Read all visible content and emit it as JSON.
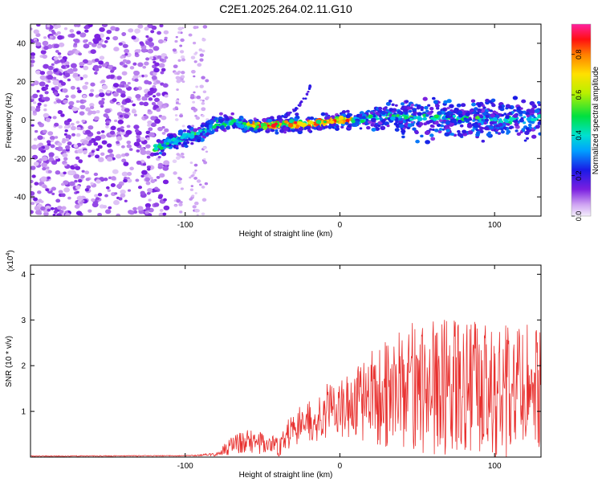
{
  "figure_title": "C2E1.2025.264.02.11.G10",
  "chart_data": [
    {
      "type": "heatmap",
      "xlabel": "Height of straight line (km)",
      "ylabel": "Frequency (Hz)",
      "xlim": [
        -200,
        130
      ],
      "ylim": [
        -50,
        50
      ],
      "xticks": [
        -100,
        0,
        100
      ],
      "xtick_labels": [
        "-100",
        "0",
        "100"
      ],
      "yticks": [
        -40,
        -20,
        0,
        20,
        40
      ],
      "ytick_labels": [
        "-40",
        "-20",
        "0",
        "20",
        "40"
      ],
      "colorbar": {
        "label": "Normalized spectral amplitude",
        "range": [
          0,
          0.95
        ],
        "ticks": [
          0.0,
          0.2,
          0.4,
          0.6,
          0.8
        ],
        "tick_labels": [
          "0.0",
          "0.2",
          "0.4",
          "0.6",
          "0.8"
        ]
      },
      "ridge": {
        "x": [
          -118,
          -110,
          -100,
          -90,
          -80,
          -70,
          -60,
          -50,
          -40,
          -30,
          -20,
          -10,
          0,
          10,
          20,
          30,
          40,
          50,
          60,
          70,
          80,
          90,
          100,
          110,
          120,
          130
        ],
        "freq": [
          -14,
          -12,
          -9,
          -6,
          -2,
          -1,
          -3,
          -3,
          -2,
          -2,
          -2,
          -1,
          0,
          0,
          1,
          2,
          2,
          1,
          1,
          2,
          1,
          0,
          0,
          0,
          0,
          1
        ]
      },
      "branch": {
        "x": [
          -35,
          -28,
          -22,
          -18
        ],
        "freq": [
          2,
          6,
          12,
          20
        ]
      }
    },
    {
      "type": "line",
      "xlabel": "Height of straight line (km)",
      "ylabel": "SNR (10 * v/v)",
      "scale_label": "(x10",
      "scale_exp": "4",
      "xlim": [
        -200,
        130
      ],
      "ylim": [
        0,
        4.2
      ],
      "xticks": [
        -100,
        0,
        100
      ],
      "xtick_labels": [
        "-100",
        "0",
        "100"
      ],
      "yticks": [
        1,
        2,
        3,
        4
      ],
      "ytick_labels": [
        "1",
        "2",
        "3",
        "4"
      ],
      "color": "#e8302e",
      "envelope": {
        "x": [
          -200,
          -100,
          -90,
          -80,
          -70,
          -60,
          -50,
          -40,
          -30,
          -20,
          -10,
          0,
          10,
          20,
          30,
          40,
          50,
          60,
          80,
          100,
          120,
          130
        ],
        "mean": [
          0.02,
          0.03,
          0.04,
          0.06,
          0.25,
          0.35,
          0.3,
          0.25,
          0.6,
          0.8,
          1.0,
          1.05,
          1.2,
          1.3,
          1.4,
          1.5,
          1.6,
          1.55,
          1.5,
          1.45,
          1.4,
          1.4
        ],
        "amp": [
          0.01,
          0.01,
          0.02,
          0.04,
          0.2,
          0.25,
          0.25,
          0.25,
          0.4,
          0.5,
          0.6,
          0.6,
          0.8,
          1.0,
          1.2,
          1.3,
          1.5,
          1.5,
          1.5,
          1.5,
          1.5,
          1.5
        ]
      }
    }
  ]
}
